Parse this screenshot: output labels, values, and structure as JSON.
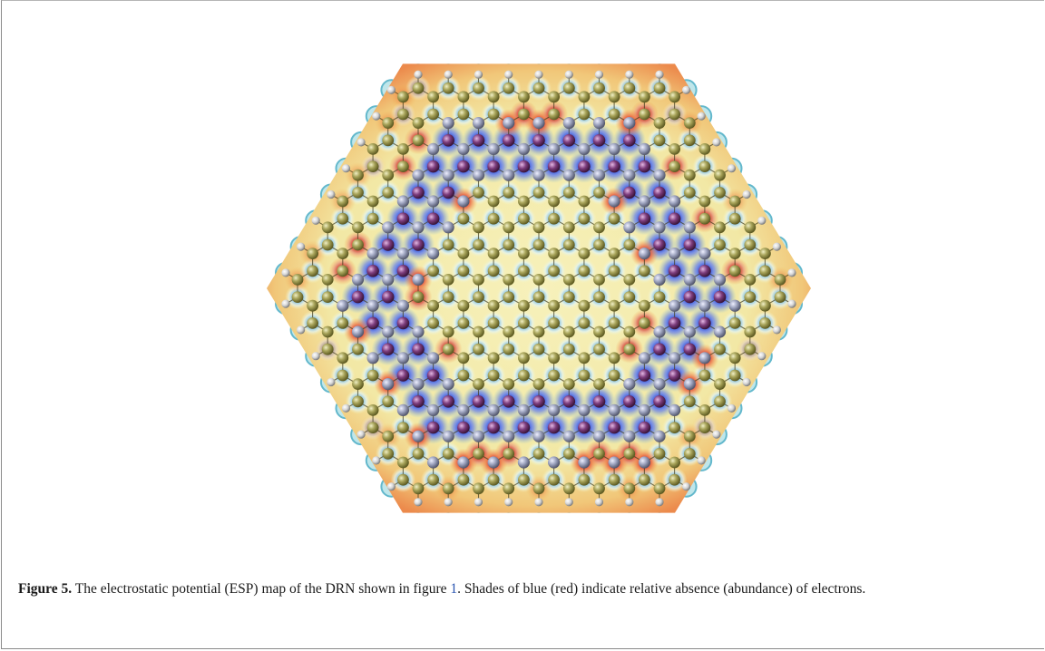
{
  "figure": {
    "label": "Figure 5.",
    "caption_text_1": " The electrostatic potential (ESP) map of the DRN shown in figure ",
    "caption_ref": "1",
    "caption_text_2": ". Shades of blue (red) indicate relative absence (abundance) of electrons."
  },
  "colors": {
    "hydrogen_atom": "#e8e8e8",
    "carbon_atom": "#9a9a50",
    "nitrogen_atom": "#9aa0b8",
    "boron_atom": "#7a3f7a",
    "esp_abundant_red": "#d83020",
    "esp_absent_blue": "#1f2fd8",
    "esp_neutral_yellow": "#f4eba6",
    "esp_cyan": "#63c7da"
  },
  "icons": {
    "atom_glyph": "sphere",
    "bond_glyph": "line"
  }
}
